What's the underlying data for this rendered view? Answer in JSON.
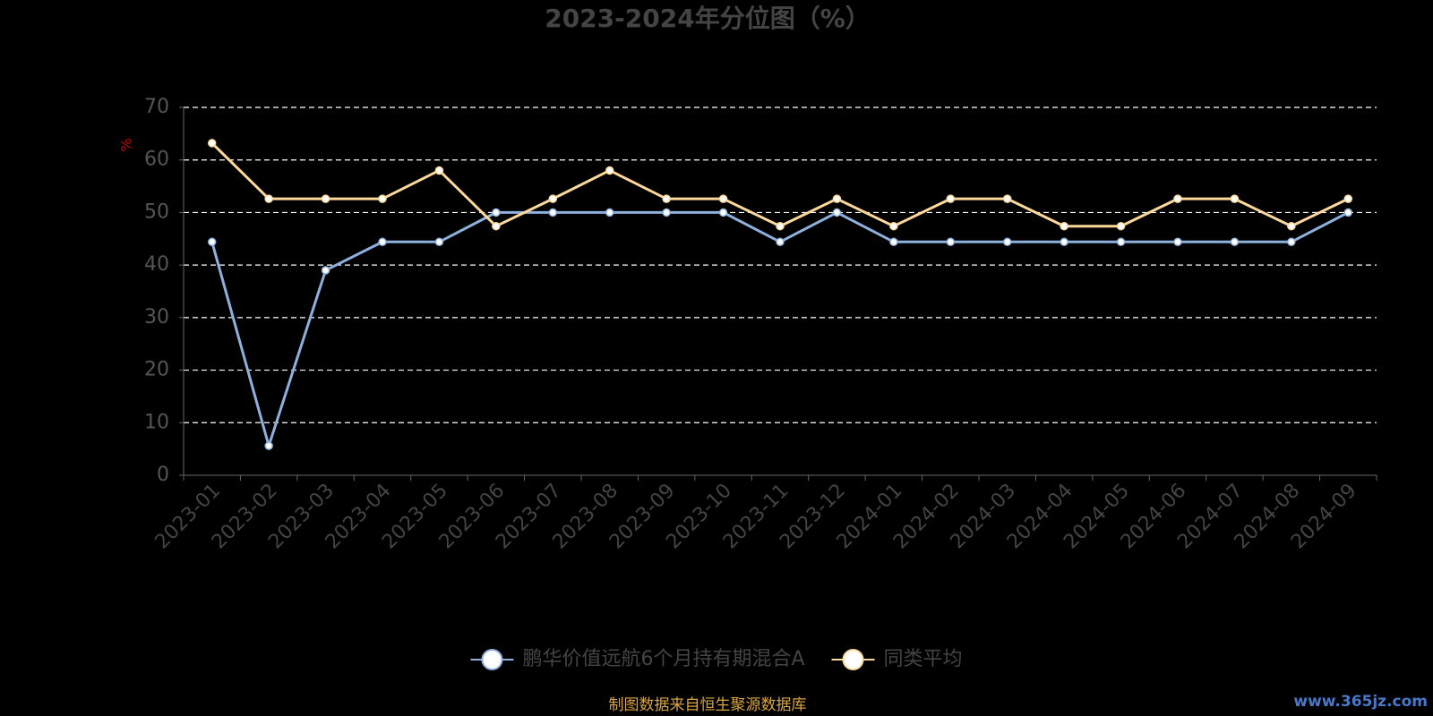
{
  "chart_data": {
    "type": "line",
    "title": "2023-2024年分位图（%）",
    "y_label": "%",
    "categories": [
      "2023-01",
      "2023-02",
      "2023-03",
      "2023-04",
      "2023-05",
      "2023-06",
      "2023-07",
      "2023-08",
      "2023-09",
      "2023-10",
      "2023-11",
      "2023-12",
      "2024-01",
      "2024-02",
      "2024-03",
      "2024-04",
      "2024-05",
      "2024-06",
      "2024-07",
      "2024-08",
      "2024-09"
    ],
    "series": [
      {
        "name": "鹏华价值远航6个月持有期混合A",
        "color": "#8eb0dc",
        "values": [
          44.4,
          5.6,
          39,
          44.4,
          44.4,
          50,
          50,
          50,
          50,
          50,
          44.4,
          50,
          44.4,
          44.4,
          44.4,
          44.4,
          44.4,
          44.4,
          44.4,
          44.4,
          50
        ]
      },
      {
        "name": "同类平均",
        "color": "#fcd89a",
        "values": [
          63.2,
          52.6,
          52.6,
          52.6,
          58,
          47.4,
          52.6,
          58,
          52.6,
          52.6,
          47.4,
          52.6,
          47.4,
          52.6,
          52.6,
          47.4,
          47.4,
          52.6,
          52.6,
          47.4,
          52.6
        ]
      }
    ],
    "ylim": [
      0,
      70
    ],
    "yticks": [
      0,
      10,
      20,
      30,
      40,
      50,
      60,
      70
    ],
    "grid": true,
    "footer": "制图数据来自恒生聚源数据库",
    "watermark": "www.365jz.com"
  }
}
